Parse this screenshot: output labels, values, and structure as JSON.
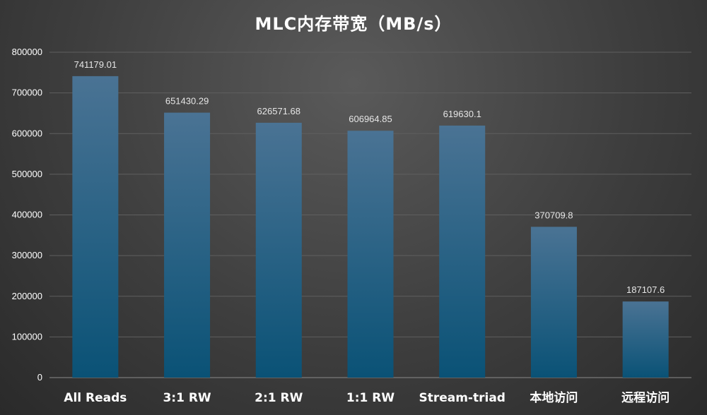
{
  "chart_data": {
    "type": "bar",
    "title": "MLC内存带宽（MB/s）",
    "categories": [
      "All Reads",
      "3:1 RW",
      "2:1 RW",
      "1:1 RW",
      "Stream-triad",
      "本地访问",
      "远程访问"
    ],
    "values": [
      741179.01,
      651430.29,
      626571.68,
      606964.85,
      619630.1,
      370709.8,
      187107.6
    ],
    "data_labels": [
      "741179.01",
      "651430.29",
      "626571.68",
      "606964.85",
      "619630.1",
      "370709.8",
      "187107.6"
    ],
    "y_ticks": [
      0,
      100000,
      200000,
      300000,
      400000,
      500000,
      600000,
      700000,
      800000
    ],
    "ylim": [
      0,
      800000
    ],
    "grid": true,
    "legend": "none",
    "colors": {
      "bar_top": "#4a7394",
      "bar_bottom": "#0a5276",
      "grid": "#5f5f5f",
      "axis": "#8a8a8a",
      "background": "#3e3e3e"
    }
  }
}
